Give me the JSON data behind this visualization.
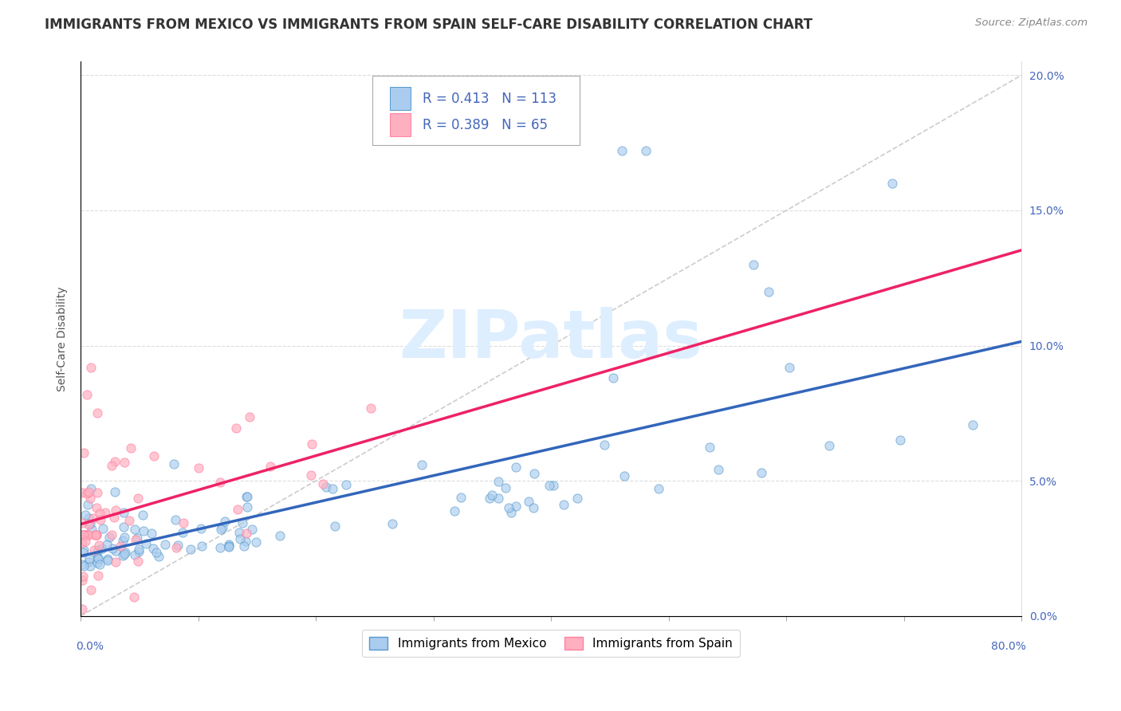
{
  "title": "IMMIGRANTS FROM MEXICO VS IMMIGRANTS FROM SPAIN SELF-CARE DISABILITY CORRELATION CHART",
  "source": "Source: ZipAtlas.com",
  "ylabel": "Self-Care Disability",
  "legend_mexico": "Immigrants from Mexico",
  "legend_spain": "Immigrants from Spain",
  "R_mexico": 0.413,
  "N_mexico": 113,
  "R_spain": 0.389,
  "N_spain": 65,
  "color_mexico_fill": "#AACCEE",
  "color_mexico_edge": "#5599CC",
  "color_spain_fill": "#FFB0C0",
  "color_spain_edge": "#FF80A0",
  "color_trendline_mexico": "#3366BB",
  "color_trendline_spain": "#EE2266",
  "color_trendline_dash": "#CCCCCC",
  "xmin": 0.0,
  "xmax": 0.8,
  "ymin": 0.0,
  "ymax": 0.205,
  "watermark": "ZIPatlas",
  "title_fontsize": 12,
  "axis_label_fontsize": 10,
  "tick_fontsize": 10,
  "legend_fontsize": 11,
  "watermark_fontsize": 60,
  "watermark_color": "#DDEEFF"
}
